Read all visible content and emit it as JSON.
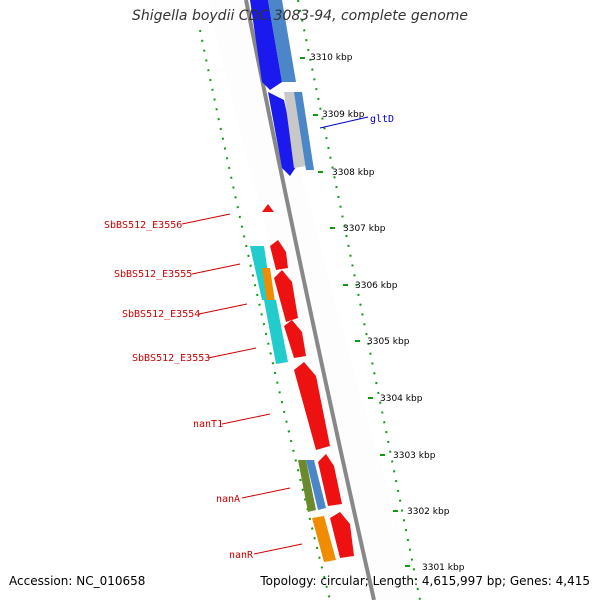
{
  "title": "Shigella boydii CDC 3083-94, complete genome",
  "accession_label": "Accession: NC_010658",
  "summary_label": "Topology: circular; Length: 4,615,997 bp; Genes: 4,415",
  "colors": {
    "blue": "#1a1aee",
    "steelblue": "#4a86c8",
    "grey": "#c8c8c8",
    "red": "#ee1111",
    "cyan": "#22cccc",
    "orange": "#f08c00",
    "olive": "#6b8a2b",
    "label_red": "#cc0000",
    "label_blue": "#0000cc",
    "dots": "#119911",
    "backbone": "#888888"
  },
  "scale_ticks": [
    {
      "label": "3310 kbp"
    },
    {
      "label": "3309 kbp"
    },
    {
      "label": "3308 kbp"
    },
    {
      "label": "3307 kbp"
    },
    {
      "label": "3306 kbp"
    },
    {
      "label": "3305 kbp"
    },
    {
      "label": "3304 kbp"
    },
    {
      "label": "3303 kbp"
    },
    {
      "label": "3302 kbp"
    },
    {
      "label": "3301 kbp"
    }
  ],
  "gene_labels": {
    "gltD": "gltD",
    "e3556": "SbBS512_E3556",
    "e3555": "SbBS512_E3555",
    "e3554": "SbBS512_E3554",
    "e3553": "SbBS512_E3553",
    "nanT1": "nanT1",
    "nanA": "nanA",
    "nanR": "nanR"
  }
}
